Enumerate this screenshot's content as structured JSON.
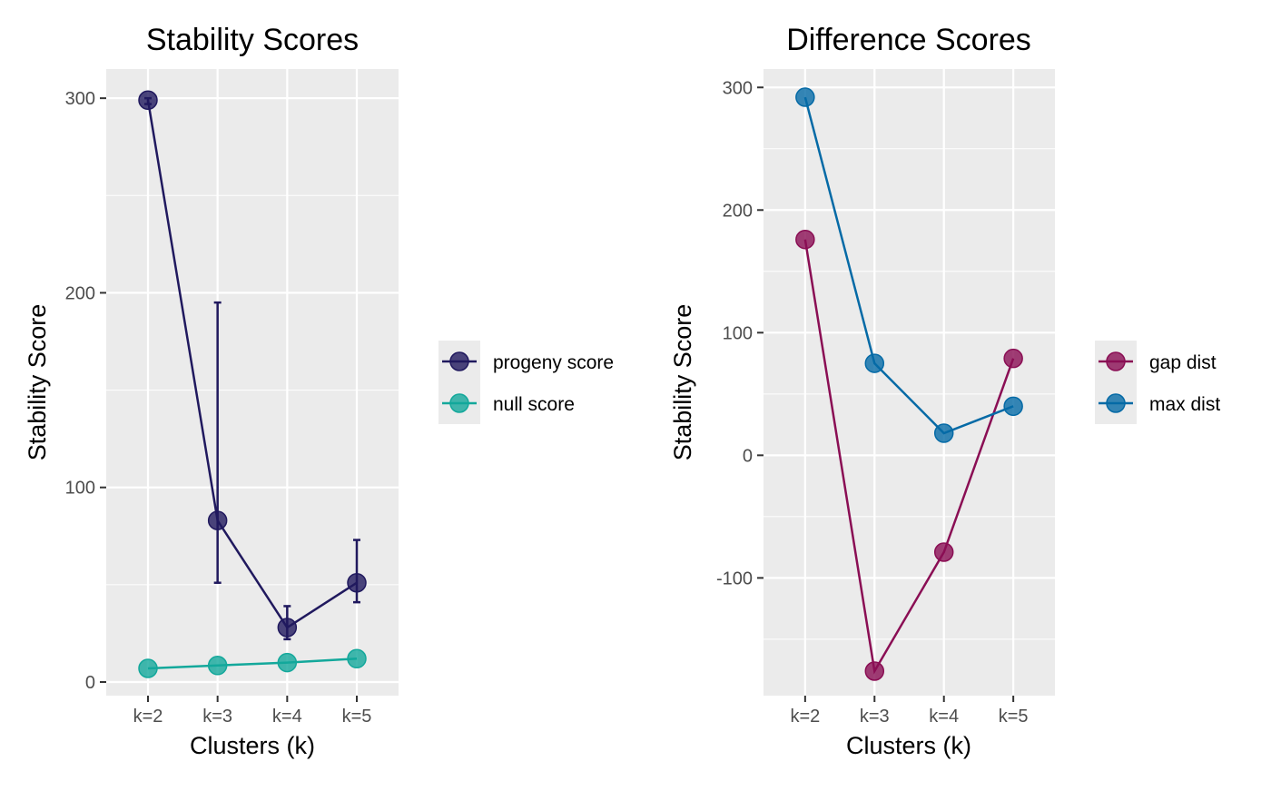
{
  "chart_data": [
    {
      "type": "line",
      "title": "Stability Scores",
      "xlabel": "Clusters (k)",
      "ylabel": "Stability Score",
      "categories": [
        "k=2",
        "k=3",
        "k=4",
        "k=5"
      ],
      "ylim": [
        -7,
        315
      ],
      "yticks": [
        0,
        100,
        200,
        300
      ],
      "grid": true,
      "legend_position": "right",
      "series": [
        {
          "name": "progeny score",
          "color": "#20195e",
          "values": [
            299,
            83,
            28,
            51
          ],
          "error_low": [
            297,
            51,
            22,
            41
          ],
          "error_high": [
            300,
            195,
            39,
            73
          ]
        },
        {
          "name": "null score",
          "color": "#13a89b",
          "values": [
            7,
            8.5,
            10,
            12
          ]
        }
      ]
    },
    {
      "type": "line",
      "title": "Difference Scores",
      "xlabel": "Clusters (k)",
      "ylabel": "Stability Score",
      "categories": [
        "k=2",
        "k=3",
        "k=4",
        "k=5"
      ],
      "ylim": [
        -196,
        315
      ],
      "yticks": [
        -100,
        0,
        100,
        200,
        300
      ],
      "grid": true,
      "legend_position": "right",
      "series": [
        {
          "name": "gap dist",
          "color": "#8a0e54",
          "values": [
            176,
            -176,
            -79,
            79
          ]
        },
        {
          "name": "max dist",
          "color": "#056aa6",
          "values": [
            292,
            75,
            18,
            40
          ]
        }
      ]
    }
  ]
}
